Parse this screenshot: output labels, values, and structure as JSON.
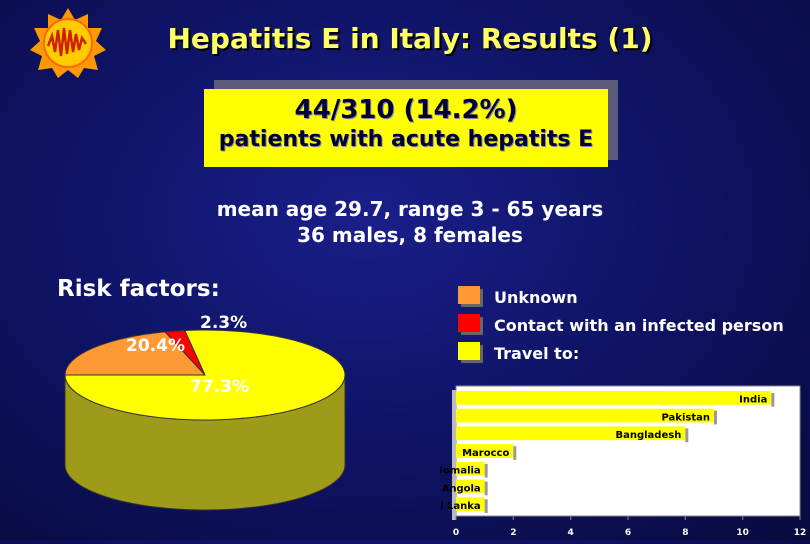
{
  "title": "Hepatitis E in Italy: Results (1)",
  "box": {
    "line1": "44/310 (14.2%)",
    "line2": "patients with acute hepatits E"
  },
  "stats": {
    "line1": "mean age 29.7, range 3 - 65 years",
    "line2": "36 males, 8 females"
  },
  "risk_label": "Risk factors:",
  "logo_icon": "sun-logo-icon",
  "colors": {
    "title": "#ffff66",
    "unknown": "#ff9933",
    "contact": "#ff0000",
    "travel": "#ffff00"
  },
  "chart_data": [
    {
      "type": "pie",
      "categories": [
        "Unknown",
        "Contact with an infected person",
        "Travel to:"
      ],
      "values": [
        20.4,
        2.3,
        77.3
      ],
      "labels": [
        "20.4%",
        "2.3%",
        "77.3%"
      ]
    },
    {
      "type": "bar",
      "orientation": "horizontal",
      "categories": [
        "India",
        "Pakistan",
        "Bangladesh",
        "Marocco",
        "Somalia",
        "Angola",
        "Sri Lanka"
      ],
      "values": [
        11,
        9,
        8,
        2,
        1,
        1,
        1
      ],
      "xlim": [
        0,
        12
      ],
      "xticks": [
        "0",
        "2",
        "4",
        "6",
        "8",
        "10",
        "12"
      ]
    }
  ],
  "legend": [
    {
      "label": "Unknown",
      "color": "#ff9933"
    },
    {
      "label": "Contact with an infected person",
      "color": "#ff0000"
    },
    {
      "label": "Travel to:",
      "color": "#ffff00"
    }
  ]
}
